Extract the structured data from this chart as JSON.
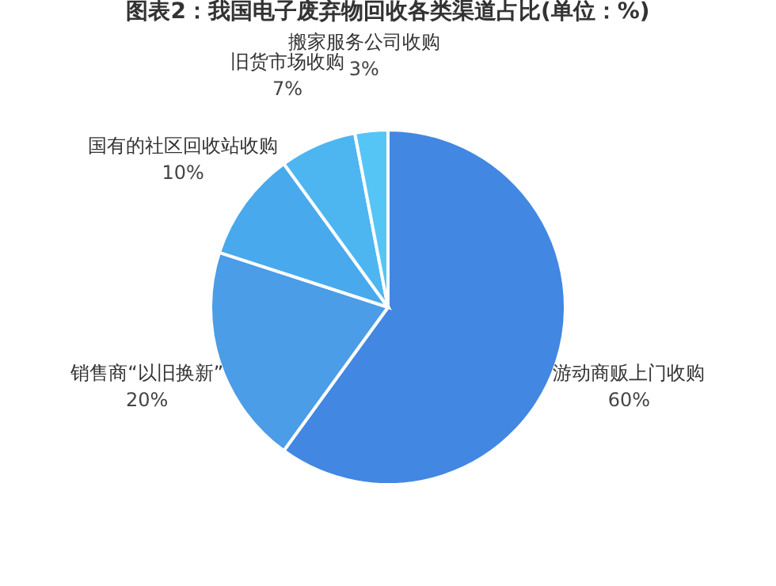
{
  "chart_data": {
    "type": "pie",
    "title": "图表2：我国电子废弃物回收各类渠道占比(单位：%)",
    "categories": [
      "游动商贩上门收购",
      "销售商“以旧换新”",
      "国有的社区回收站收购",
      "旧货市场收购",
      "搬家服务公司收购"
    ],
    "values": [
      60,
      20,
      10,
      7,
      3
    ],
    "value_labels": [
      "60%",
      "20%",
      "10%",
      "7%",
      "3%"
    ],
    "colors": [
      "#4287e1",
      "#4a9de6",
      "#48a9ec",
      "#4db6f1",
      "#55c5f6"
    ],
    "legend": false
  }
}
